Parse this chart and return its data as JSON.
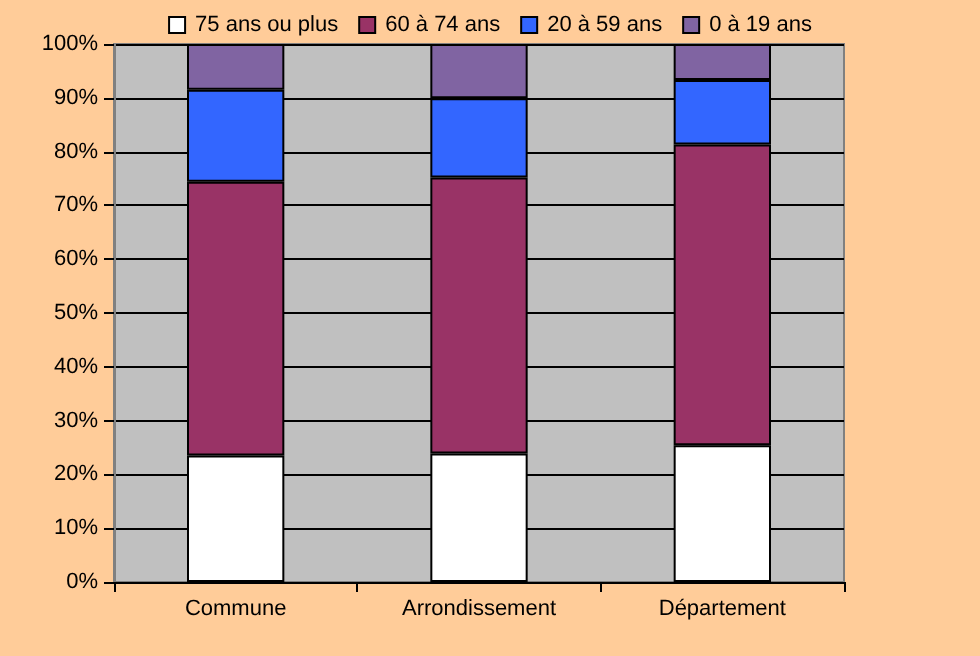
{
  "chart_data": {
    "type": "bar",
    "stacked": true,
    "categories": [
      "Commune",
      "Arrondissement",
      "Département"
    ],
    "series": [
      {
        "name": "75 ans ou plus",
        "color": "#ffffff",
        "values": [
          23.5,
          23.9,
          25.4
        ]
      },
      {
        "name": "60 à 74 ans",
        "color": "#993366",
        "values": [
          50.9,
          51.3,
          55.9
        ]
      },
      {
        "name": "20 à 59 ans",
        "color": "#3366ff",
        "values": [
          17.1,
          14.7,
          12.0
        ]
      },
      {
        "name": "0 à 19 ans",
        "color": "#8064a2",
        "values": [
          8.5,
          10.1,
          6.7
        ]
      }
    ],
    "ylim": [
      0,
      100
    ],
    "yticks": [
      {
        "value": 0,
        "label": "0%"
      },
      {
        "value": 10,
        "label": "10%"
      },
      {
        "value": 20,
        "label": "20%"
      },
      {
        "value": 30,
        "label": "30%"
      },
      {
        "value": 40,
        "label": "40%"
      },
      {
        "value": 50,
        "label": "50%"
      },
      {
        "value": 60,
        "label": "60%"
      },
      {
        "value": 70,
        "label": "70%"
      },
      {
        "value": 80,
        "label": "80%"
      },
      {
        "value": 90,
        "label": "90%"
      },
      {
        "value": 100,
        "label": "100%"
      }
    ],
    "grid": "y",
    "legend": "top"
  }
}
